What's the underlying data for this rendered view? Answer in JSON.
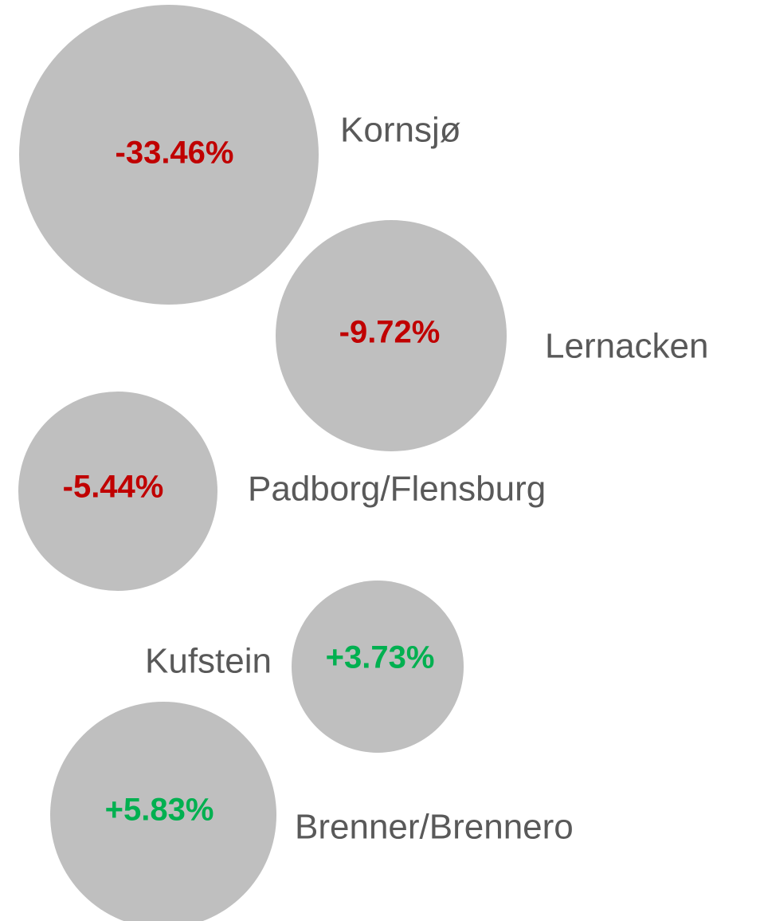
{
  "chart_data": {
    "type": "bubble",
    "categories": [
      "Kornsjø",
      "Lernacken",
      "Padborg/Flensburg",
      "Kufstein",
      "Brenner/Brennero"
    ],
    "values": [
      -33.46,
      -9.72,
      -5.44,
      3.73,
      5.83
    ],
    "value_labels": [
      "-33.46%",
      "-9.72%",
      "-5.44%",
      "+3.73%",
      "+5.83%"
    ],
    "bubble_color": "#bfbfbf",
    "negative_color": "#c00000",
    "positive_color": "#00b050"
  }
}
